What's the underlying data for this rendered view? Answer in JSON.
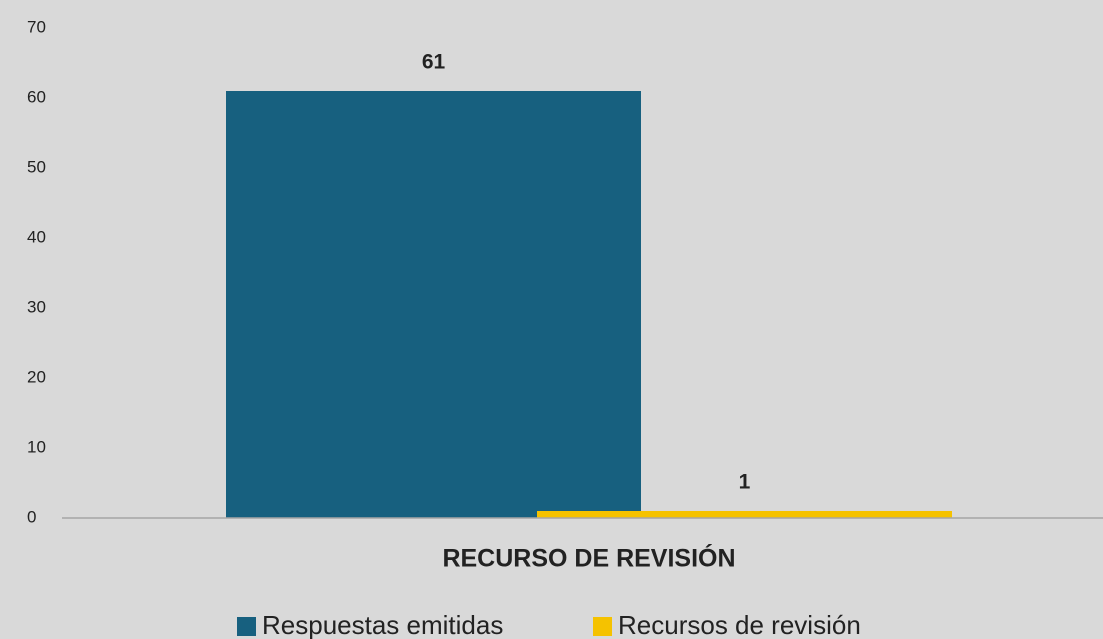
{
  "chart_data": {
    "type": "bar",
    "categories": [
      "RECURSO DE REVISIÓN"
    ],
    "series": [
      {
        "name": "Respuestas emitidas",
        "color": "#17607f",
        "values": [
          61
        ]
      },
      {
        "name": "Recursos de revisión",
        "color": "#f5c200",
        "values": [
          1
        ]
      }
    ],
    "ylim": [
      0,
      70
    ],
    "yticks": [
      0,
      10,
      20,
      30,
      40,
      50,
      60,
      70
    ],
    "grid": false,
    "legend": "bottom",
    "background": "#d9d9d9"
  }
}
